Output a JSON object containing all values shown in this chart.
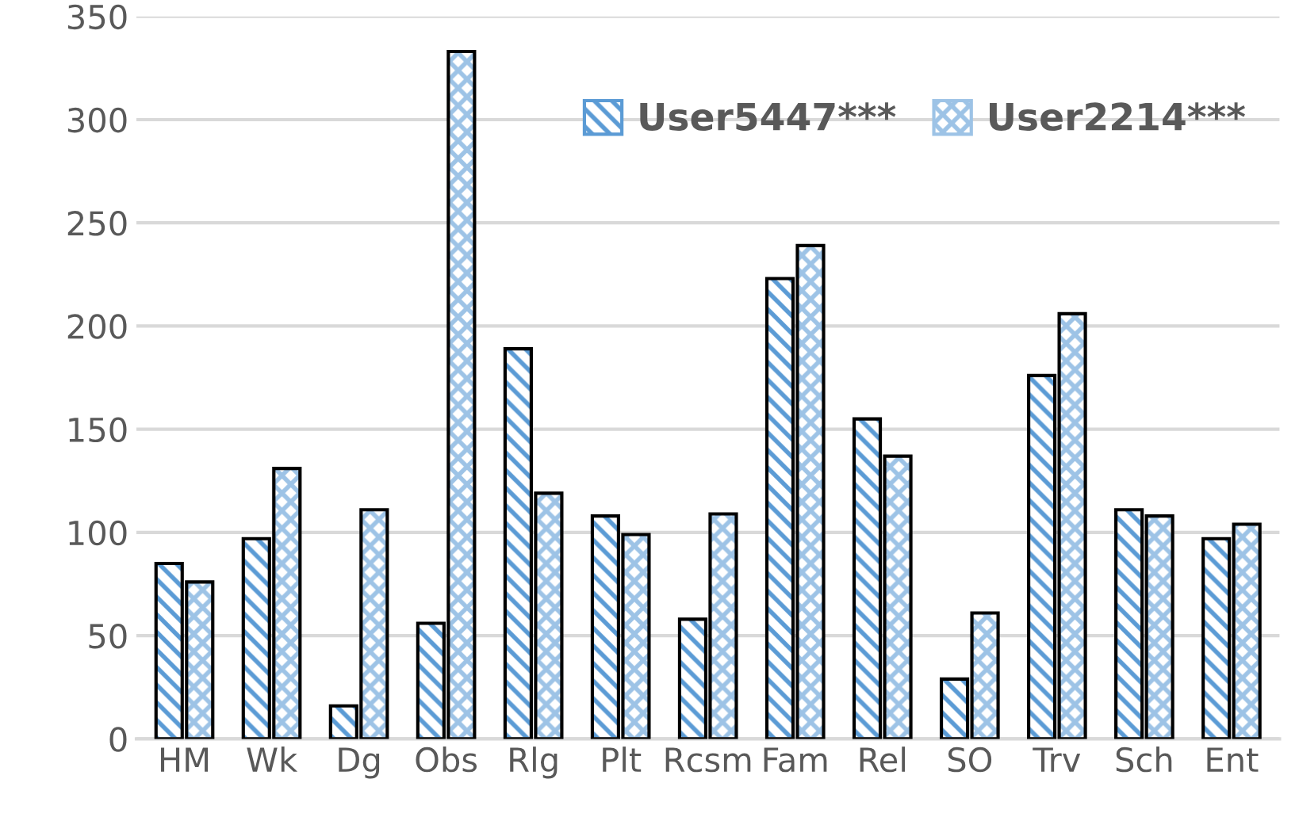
{
  "chart_data": {
    "type": "bar",
    "categories": [
      "HM",
      "Wk",
      "Dg",
      "Obs",
      "Rlg",
      "Plt",
      "Rcsm",
      "Fam",
      "Rel",
      "SO",
      "Trv",
      "Sch",
      "Ent"
    ],
    "series": [
      {
        "name": "User5447***",
        "color": "#5b9bd5",
        "values": [
          85,
          97,
          16,
          56,
          189,
          108,
          58,
          223,
          155,
          29,
          176,
          111,
          97
        ]
      },
      {
        "name": "User2214***",
        "color": "#9dc3e6",
        "values": [
          76,
          131,
          111,
          333,
          119,
          99,
          109,
          239,
          137,
          61,
          206,
          108,
          104
        ]
      }
    ],
    "ylim": [
      0,
      350
    ],
    "yticks": [
      0,
      50,
      100,
      150,
      200,
      250,
      300,
      350
    ],
    "grid": "y",
    "legend": "top right"
  }
}
